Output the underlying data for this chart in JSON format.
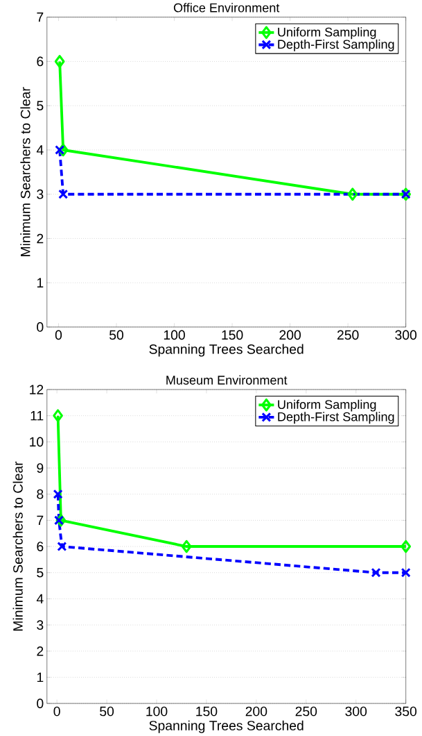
{
  "chart_data": [
    {
      "type": "line",
      "title": "Office Environment",
      "xlabel": "Spanning Trees Searched",
      "ylabel": "Minimum Searchers to Clear",
      "xlim": [
        -10,
        300
      ],
      "xticks": [
        0,
        50,
        100,
        150,
        200,
        250,
        300
      ],
      "ylim": [
        0,
        7
      ],
      "yticks": [
        0,
        1,
        2,
        3,
        4,
        5,
        6,
        7
      ],
      "grid": "y",
      "legend": "top right",
      "series": [
        {
          "name": "Uniform Sampling",
          "color": "#00ff00",
          "marker": "diamond",
          "line_style": "solid",
          "x": [
            1,
            4,
            254,
            300
          ],
          "values": [
            6,
            4,
            3,
            3
          ]
        },
        {
          "name": "Depth-First Sampling",
          "color": "#0000ff",
          "marker": "cross",
          "line_style": "dashed",
          "x": [
            1,
            4,
            300
          ],
          "values": [
            4,
            3,
            3
          ]
        }
      ]
    },
    {
      "type": "line",
      "title": "Museum Environment",
      "xlabel": "Spanning Trees Searched",
      "ylabel": "Minimum Searchers to Clear",
      "xlim": [
        -10,
        350
      ],
      "xticks": [
        0,
        50,
        100,
        150,
        200,
        250,
        300,
        350
      ],
      "ylim": [
        0,
        12
      ],
      "yticks": [
        0,
        1,
        2,
        3,
        4,
        5,
        6,
        7,
        8,
        9,
        10,
        11,
        12
      ],
      "grid": "y",
      "legend": "top right",
      "series": [
        {
          "name": "Uniform Sampling",
          "color": "#00ff00",
          "marker": "diamond",
          "line_style": "solid",
          "x": [
            1,
            4,
            130,
            350
          ],
          "values": [
            11,
            7,
            6,
            6
          ]
        },
        {
          "name": "Depth-First Sampling",
          "color": "#0000ff",
          "marker": "cross",
          "line_style": "dashed",
          "x": [
            1,
            2,
            5,
            320,
            350
          ],
          "values": [
            8,
            7,
            6,
            5,
            5
          ]
        }
      ]
    }
  ]
}
